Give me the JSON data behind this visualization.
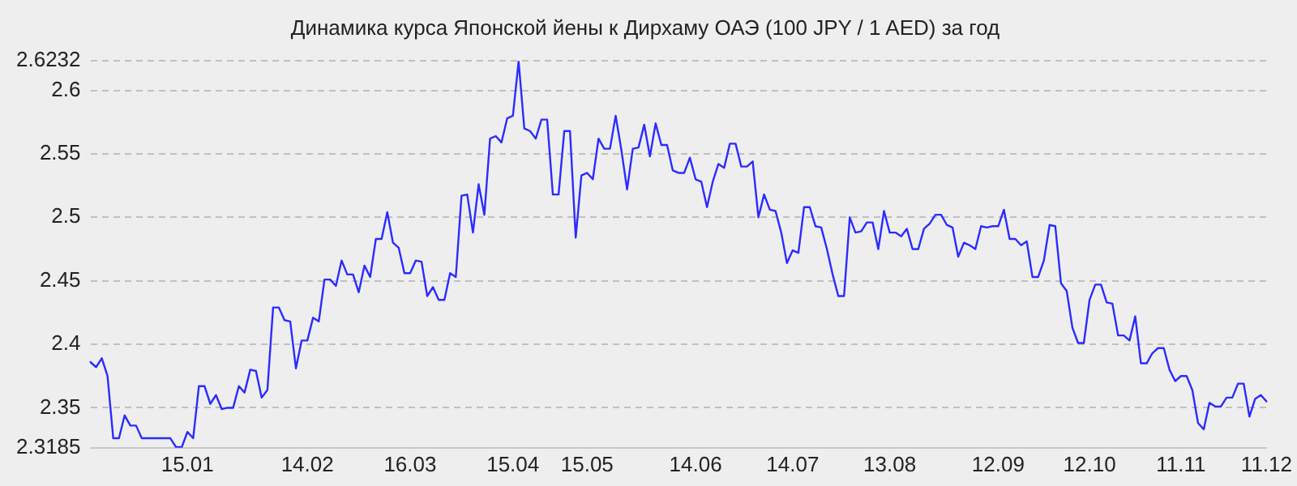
{
  "chart_data": {
    "type": "line",
    "title": "Динамика курса Японской йены к Дирхаму ОАЭ (100 JPY / 1 AED) за год",
    "categories": [
      null,
      null,
      null,
      null,
      null,
      null,
      null,
      null,
      null,
      null,
      null,
      null,
      null,
      null,
      null,
      null,
      null,
      "15.01",
      null,
      null,
      null,
      null,
      null,
      null,
      null,
      null,
      null,
      null,
      null,
      null,
      null,
      null,
      null,
      null,
      null,
      null,
      null,
      null,
      "14.02",
      null,
      null,
      null,
      null,
      null,
      null,
      null,
      null,
      null,
      null,
      null,
      null,
      null,
      null,
      null,
      null,
      null,
      "16.03",
      null,
      null,
      null,
      null,
      null,
      null,
      null,
      null,
      null,
      null,
      null,
      null,
      null,
      null,
      null,
      null,
      null,
      "15.04",
      null,
      null,
      null,
      null,
      null,
      null,
      null,
      null,
      null,
      null,
      null,
      null,
      "15.05",
      null,
      null,
      null,
      null,
      null,
      null,
      null,
      null,
      null,
      null,
      null,
      null,
      null,
      null,
      null,
      null,
      null,
      null,
      "14.06",
      null,
      null,
      null,
      null,
      null,
      null,
      null,
      null,
      null,
      null,
      null,
      null,
      null,
      null,
      null,
      null,
      "14.07",
      null,
      null,
      null,
      null,
      null,
      null,
      null,
      null,
      null,
      null,
      null,
      null,
      null,
      null,
      null,
      null,
      "13.08",
      null,
      null,
      null,
      null,
      null,
      null,
      null,
      null,
      null,
      null,
      null,
      null,
      null,
      null,
      null,
      null,
      null,
      null,
      "12.09",
      null,
      null,
      null,
      null,
      null,
      null,
      null,
      null,
      null,
      null,
      null,
      null,
      null,
      null,
      null,
      "12.10",
      null,
      null,
      null,
      null,
      null,
      null,
      null,
      null,
      null,
      null,
      null,
      null,
      null,
      null,
      null,
      "11.11",
      null,
      null,
      null,
      null,
      null,
      null,
      null,
      null,
      null,
      null,
      null,
      null,
      null,
      null,
      "11.12"
    ],
    "series": [
      {
        "color": "#2b2bff",
        "values": [
          2.386,
          2.382,
          2.389,
          2.375,
          2.326,
          2.326,
          2.344,
          2.336,
          2.336,
          2.326,
          2.326,
          2.326,
          2.326,
          2.326,
          2.326,
          2.319,
          2.319,
          2.331,
          2.326,
          2.367,
          2.367,
          2.353,
          2.36,
          2.349,
          2.35,
          2.35,
          2.367,
          2.362,
          2.38,
          2.379,
          2.358,
          2.364,
          2.429,
          2.429,
          2.419,
          2.418,
          2.381,
          2.403,
          2.403,
          2.421,
          2.418,
          2.451,
          2.451,
          2.446,
          2.466,
          2.455,
          2.455,
          2.441,
          2.462,
          2.453,
          2.483,
          2.483,
          2.504,
          2.48,
          2.476,
          2.456,
          2.456,
          2.466,
          2.465,
          2.438,
          2.445,
          2.435,
          2.435,
          2.456,
          2.453,
          2.517,
          2.518,
          2.488,
          2.526,
          2.502,
          2.562,
          2.564,
          2.559,
          2.578,
          2.58,
          2.623,
          2.57,
          2.568,
          2.562,
          2.577,
          2.577,
          2.518,
          2.518,
          2.568,
          2.568,
          2.484,
          2.533,
          2.535,
          2.53,
          2.562,
          2.554,
          2.554,
          2.58,
          2.553,
          2.522,
          2.554,
          2.555,
          2.573,
          2.548,
          2.574,
          2.557,
          2.557,
          2.537,
          2.535,
          2.535,
          2.547,
          2.53,
          2.528,
          2.508,
          2.528,
          2.542,
          2.539,
          2.558,
          2.558,
          2.54,
          2.54,
          2.544,
          2.5,
          2.518,
          2.506,
          2.505,
          2.488,
          2.464,
          2.474,
          2.472,
          2.508,
          2.508,
          2.493,
          2.492,
          2.475,
          2.455,
          2.438,
          2.438,
          2.5,
          2.488,
          2.489,
          2.496,
          2.496,
          2.475,
          2.505,
          2.488,
          2.488,
          2.485,
          2.491,
          2.475,
          2.475,
          2.491,
          2.495,
          2.502,
          2.502,
          2.494,
          2.492,
          2.469,
          2.48,
          2.478,
          2.475,
          2.493,
          2.492,
          2.493,
          2.493,
          2.506,
          2.483,
          2.483,
          2.478,
          2.481,
          2.453,
          2.453,
          2.466,
          2.494,
          2.493,
          2.448,
          2.442,
          2.413,
          2.401,
          2.401,
          2.435,
          2.447,
          2.447,
          2.433,
          2.432,
          2.407,
          2.407,
          2.403,
          2.422,
          2.385,
          2.385,
          2.393,
          2.397,
          2.397,
          2.38,
          2.371,
          2.375,
          2.375,
          2.364,
          2.338,
          2.333,
          2.354,
          2.351,
          2.351,
          2.358,
          2.358,
          2.369,
          2.369,
          2.343,
          2.357,
          2.36,
          2.355
        ]
      }
    ],
    "ylim": [
      2.3185,
      2.6232
    ],
    "yticks": [
      2.3185,
      2.35,
      2.4,
      2.45,
      2.5,
      2.55,
      2.6,
      2.6232
    ],
    "grid": "y",
    "legend": false,
    "marker": "none",
    "line_style": "solid"
  }
}
